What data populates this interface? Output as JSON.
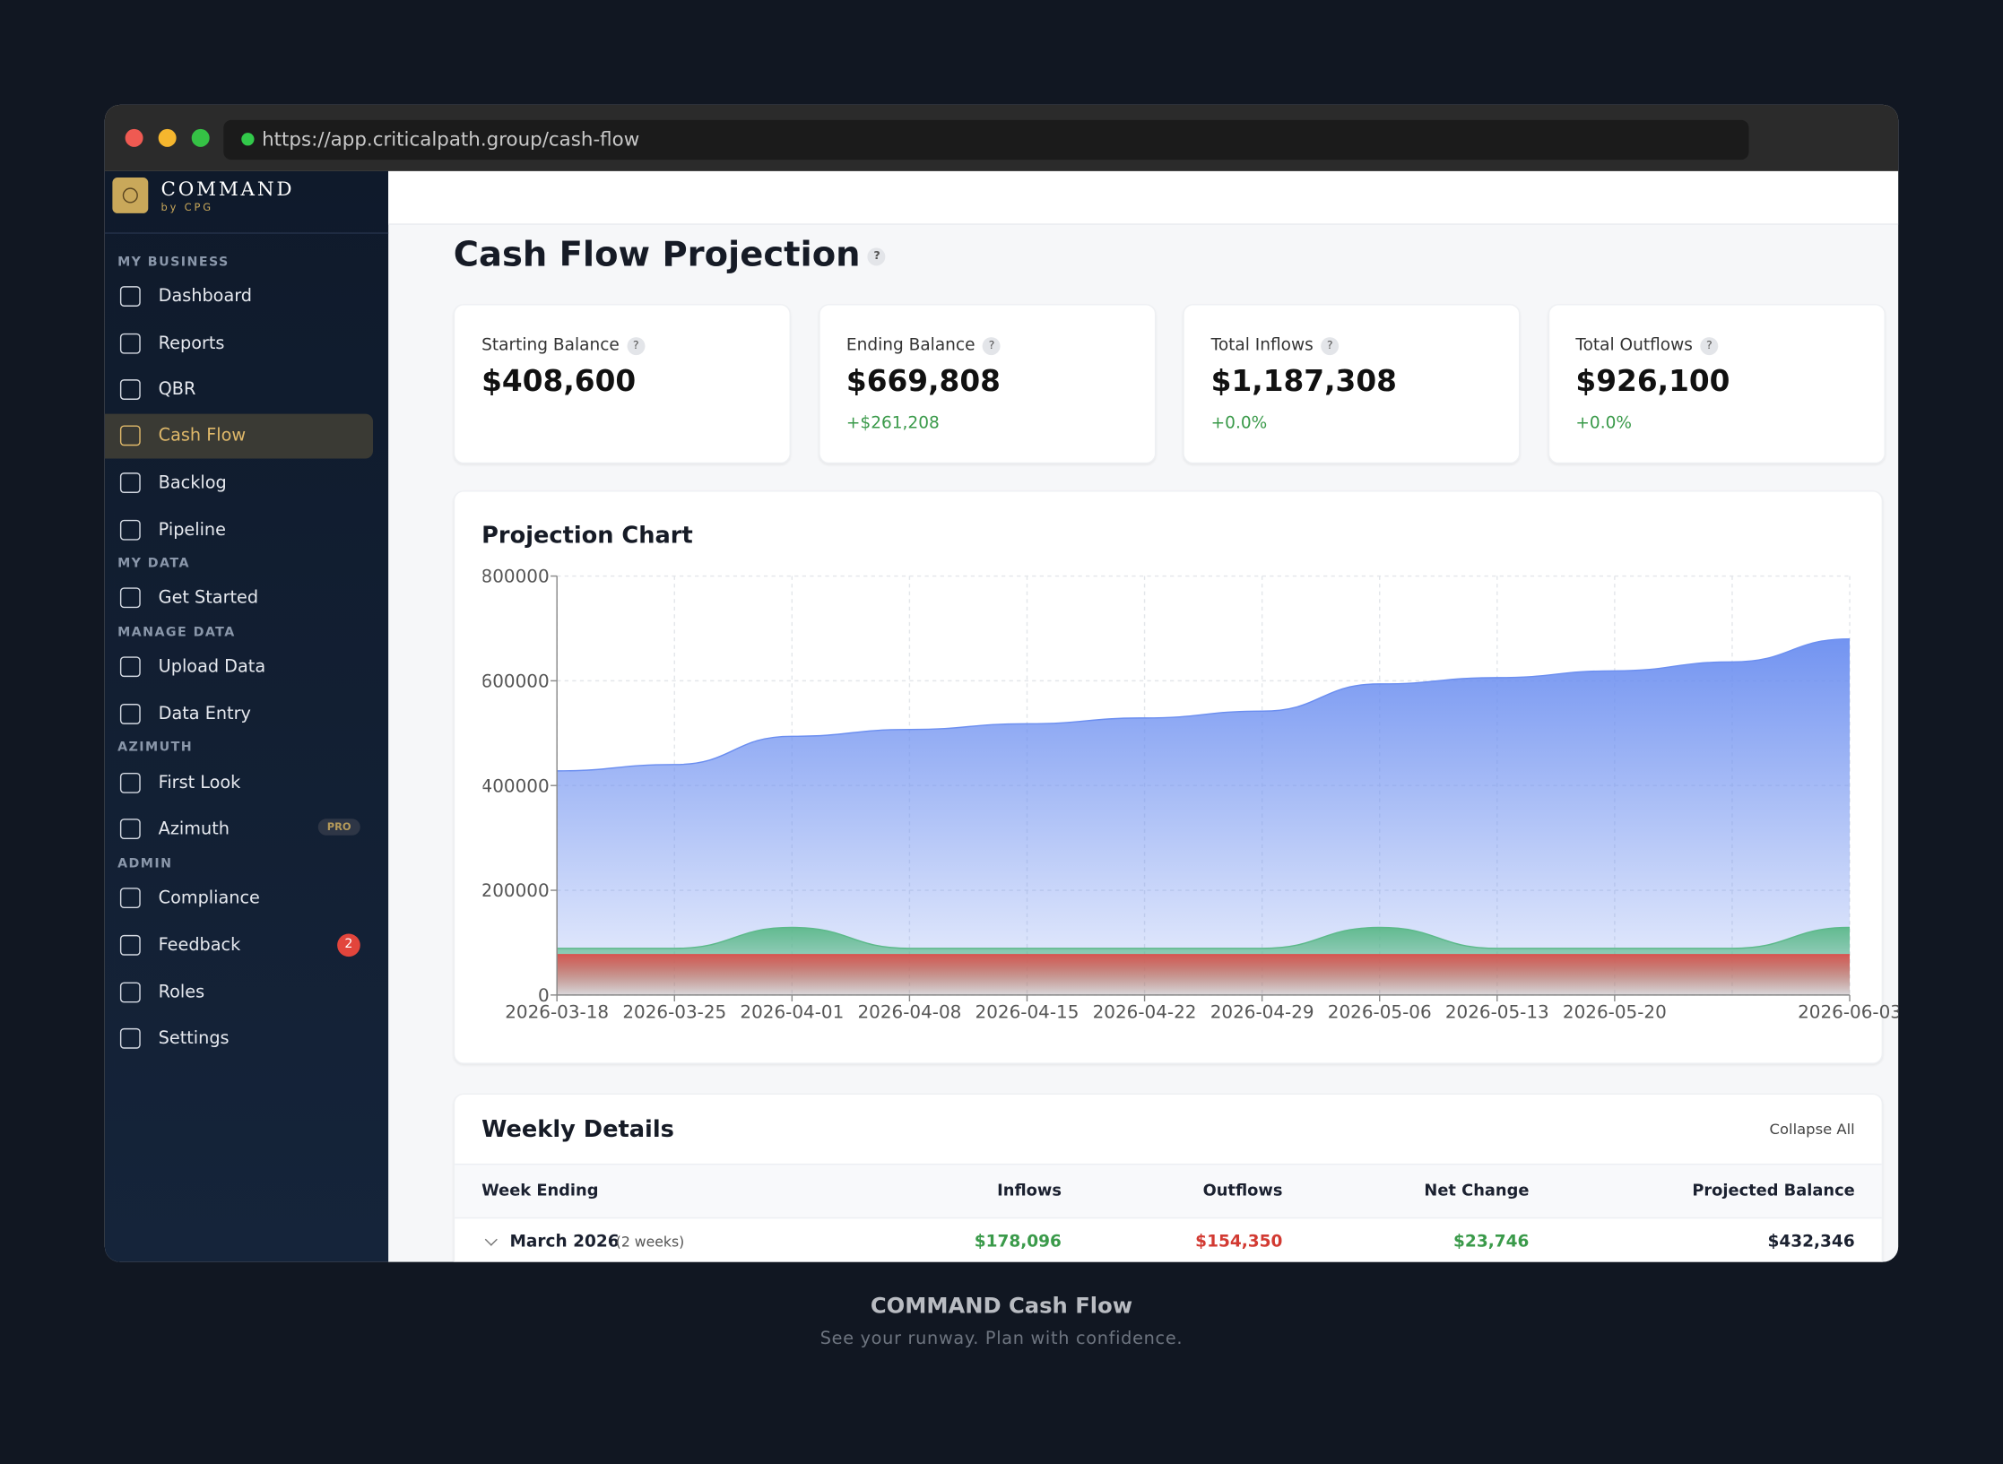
{
  "browser": {
    "url": "https://app.criticalpath.group/cash-flow"
  },
  "brand": {
    "name": "COMMAND",
    "sub": "by CPG"
  },
  "sidebar": {
    "sections": [
      {
        "label": "MY BUSINESS",
        "items": [
          {
            "label": "Dashboard"
          },
          {
            "label": "Reports"
          },
          {
            "label": "QBR"
          },
          {
            "label": "Cash Flow",
            "active": true
          },
          {
            "label": "Backlog"
          },
          {
            "label": "Pipeline"
          }
        ]
      },
      {
        "label": "MY DATA",
        "items": [
          {
            "label": "Get Started"
          }
        ]
      },
      {
        "label": "MANAGE DATA",
        "items": [
          {
            "label": "Upload Data"
          },
          {
            "label": "Data Entry"
          }
        ]
      },
      {
        "label": "AZIMUTH",
        "items": [
          {
            "label": "First Look"
          },
          {
            "label": "Azimuth",
            "badge": "PRO"
          }
        ]
      },
      {
        "label": "ADMIN",
        "items": [
          {
            "label": "Compliance"
          },
          {
            "label": "Feedback",
            "count": "2"
          },
          {
            "label": "Roles"
          },
          {
            "label": "Settings"
          }
        ]
      }
    ]
  },
  "page": {
    "title": "Cash Flow Projection",
    "help": "?"
  },
  "cards": [
    {
      "label": "Starting Balance",
      "value": "$408,600"
    },
    {
      "label": "Ending Balance",
      "value": "$669,808",
      "change": "+$261,208"
    },
    {
      "label": "Total Inflows",
      "value": "$1,187,308",
      "change": "+0.0%"
    },
    {
      "label": "Total Outflows",
      "value": "$926,100",
      "change": "+0.0%"
    }
  ],
  "chart_data": {
    "type": "area",
    "title": "Projection Chart",
    "categories": [
      "2026-03-18",
      "2026-03-25",
      "2026-04-01",
      "2026-04-08",
      "2026-04-15",
      "2026-04-22",
      "2026-04-29",
      "2026-05-06",
      "2026-05-13",
      "2026-05-20",
      null,
      "2026-06-03"
    ],
    "series": [
      {
        "color": "#6b8ef0",
        "values": [
          428000,
          440000,
          494000,
          507000,
          518000,
          529000,
          542000,
          594000,
          606000,
          619000,
          636000,
          680000
        ]
      },
      {
        "color": "#5cb98a",
        "values": [
          89000,
          89000,
          129000,
          89000,
          89000,
          89000,
          89000,
          129000,
          89000,
          89000,
          89000,
          129000
        ]
      },
      {
        "color": "#d9534f",
        "values": [
          77000,
          77000,
          77000,
          77000,
          77000,
          77000,
          77000,
          77000,
          77000,
          77000,
          77000,
          77000
        ]
      }
    ],
    "ylim": [
      0,
      800000
    ],
    "yticks": [
      0,
      200000,
      400000,
      600000,
      800000
    ],
    "grid": true
  },
  "table": {
    "title": "Weekly Details",
    "action": "Collapse All",
    "columns": [
      "Week Ending",
      "Inflows",
      "Outflows",
      "Net Change",
      "Projected Balance"
    ],
    "rows": [
      {
        "label": "March 2026",
        "note": "(2 weeks)",
        "cells": [
          "$178,096",
          "$154,350",
          "$23,746",
          "$432,346"
        ]
      }
    ]
  },
  "caption": {
    "title": "COMMAND Cash Flow",
    "subtitle": "See your runway. Plan with confidence."
  }
}
